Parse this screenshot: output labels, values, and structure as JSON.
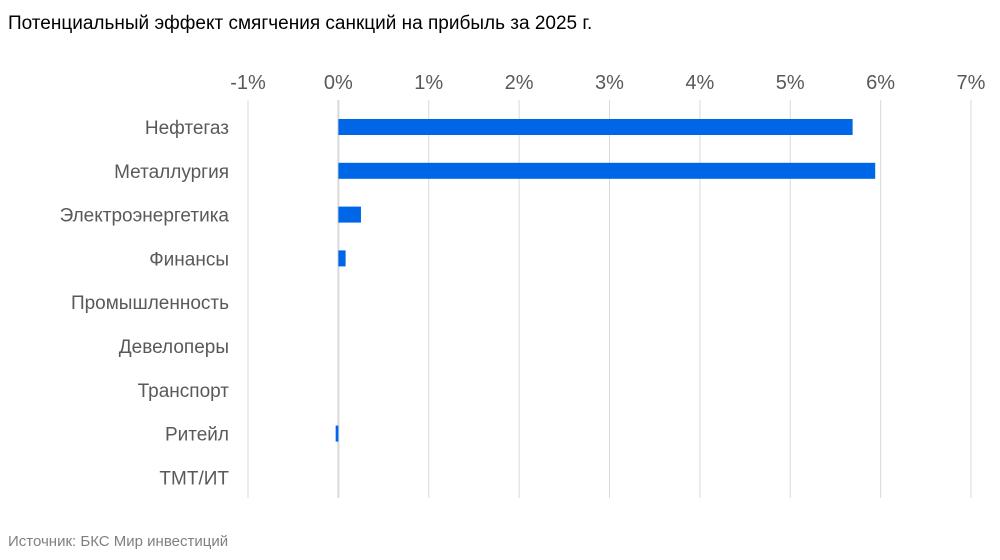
{
  "chart_data": {
    "type": "bar",
    "orientation": "horizontal",
    "title": "Потенциальный эффект смягчения санкций на прибыль за 2025 г.",
    "source": "Источник: БКС Мир инвестиций",
    "categories": [
      "Нефтегаз",
      "Металлургия",
      "Электроэнергетика",
      "Финансы",
      "Промышленность",
      "Девелоперы",
      "Транспорт",
      "Ритейл",
      "ТМТ/ИТ"
    ],
    "values": [
      5.69,
      5.94,
      0.25,
      0.08,
      0,
      0,
      0,
      -0.03,
      0
    ],
    "unit": "%",
    "xlim": [
      -1,
      7
    ],
    "xticks": [
      "-1%",
      "0%",
      "1%",
      "2%",
      "3%",
      "4%",
      "5%",
      "6%",
      "7%"
    ],
    "xaxis_position": "top",
    "grid": true,
    "colors": {
      "bar": "#0066e8",
      "grid": "#d9d9d9",
      "label": "#595959"
    }
  }
}
